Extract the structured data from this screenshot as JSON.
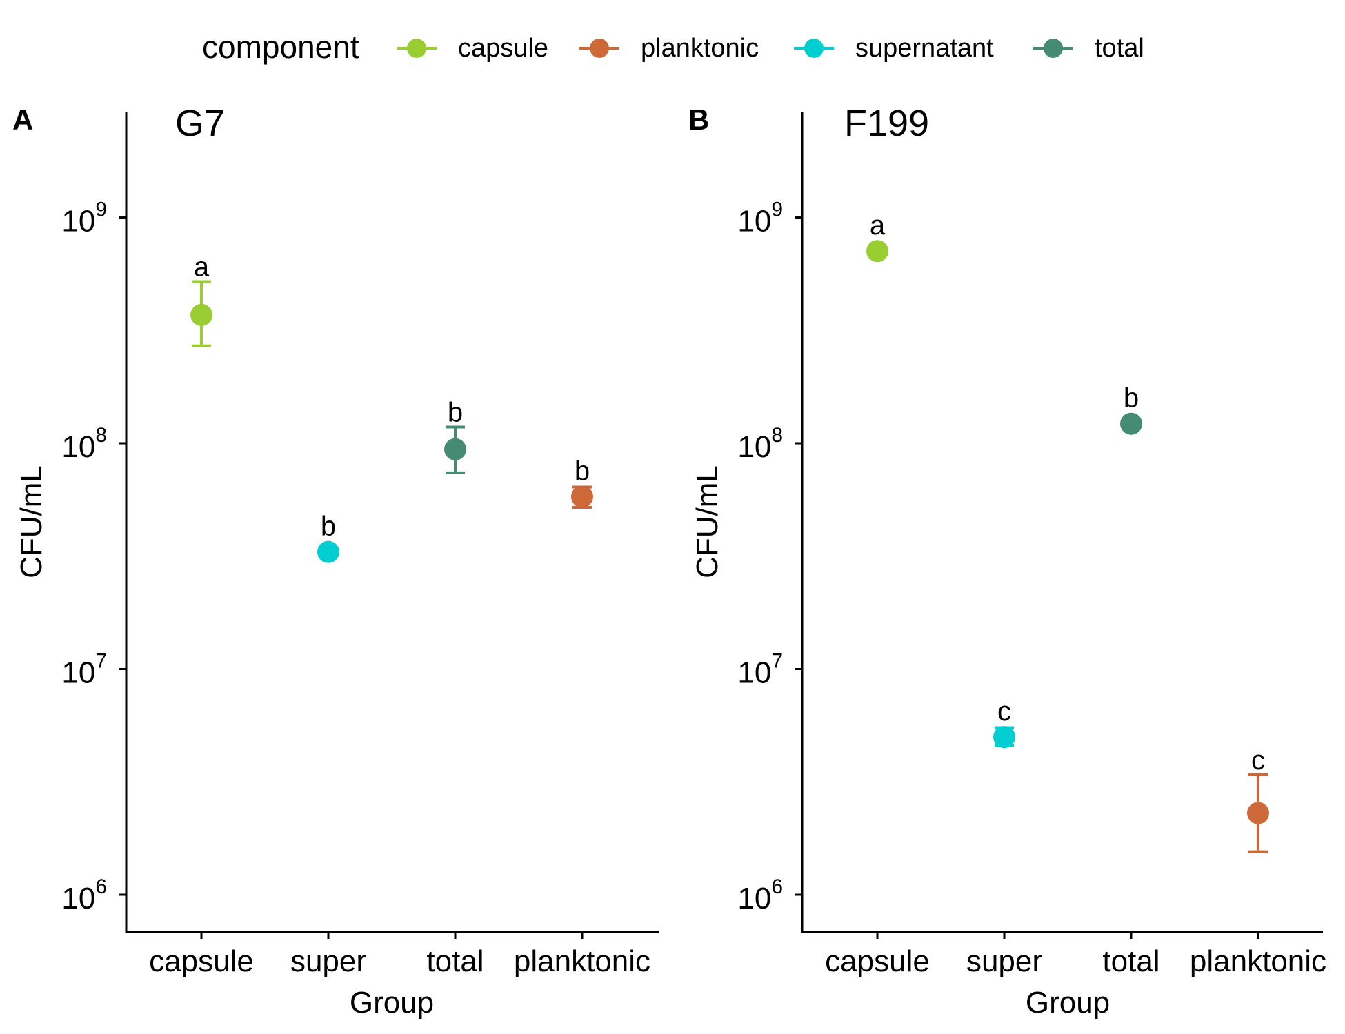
{
  "legend": {
    "title": "component",
    "items": [
      {
        "label": "capsule",
        "color": "#9ACD32"
      },
      {
        "label": "planktonic",
        "color": "#CD6839"
      },
      {
        "label": "supernatant",
        "color": "#00CED1"
      },
      {
        "label": "total",
        "color": "#458B74"
      }
    ]
  },
  "chart_data": [
    {
      "type": "scatter",
      "panel_label": "A",
      "title": "G7",
      "xlabel": "Group",
      "ylabel": "CFU/mL",
      "yscale": "log",
      "ylim": [
        500000,
        2500000000
      ],
      "ytick_labels": [
        {
          "value": 1000000,
          "base": "10",
          "exp": "6"
        },
        {
          "value": 10000000,
          "base": "10",
          "exp": "7"
        },
        {
          "value": 100000000,
          "base": "10",
          "exp": "8"
        },
        {
          "value": 1000000000,
          "base": "10",
          "exp": "9"
        }
      ],
      "categories": [
        "capsule",
        "super",
        "total",
        "planktonic"
      ],
      "points": [
        {
          "category": "capsule",
          "component": "capsule",
          "color": "#9ACD32",
          "y": 370000000,
          "ymin": 270000000,
          "ymax": 520000000,
          "letter": "a"
        },
        {
          "category": "super",
          "component": "supernatant",
          "color": "#00CED1",
          "y": 33000000,
          "ymin": 32000000,
          "ymax": 34000000,
          "letter": "b"
        },
        {
          "category": "total",
          "component": "total",
          "color": "#458B74",
          "y": 94000000,
          "ymin": 74000000,
          "ymax": 118000000,
          "letter": "b"
        },
        {
          "category": "planktonic",
          "component": "planktonic",
          "color": "#CD6839",
          "y": 58000000,
          "ymin": 52000000,
          "ymax": 64000000,
          "letter": "b"
        }
      ]
    },
    {
      "type": "scatter",
      "panel_label": "B",
      "title": "F199",
      "xlabel": "Group",
      "ylabel": "CFU/mL",
      "yscale": "log",
      "ylim": [
        500000,
        2500000000
      ],
      "ytick_labels": [
        {
          "value": 1000000,
          "base": "10",
          "exp": "6"
        },
        {
          "value": 10000000,
          "base": "10",
          "exp": "7"
        },
        {
          "value": 100000000,
          "base": "10",
          "exp": "8"
        },
        {
          "value": 1000000000,
          "base": "10",
          "exp": "9"
        }
      ],
      "categories": [
        "capsule",
        "super",
        "total",
        "planktonic"
      ],
      "points": [
        {
          "category": "capsule",
          "component": "capsule",
          "color": "#9ACD32",
          "y": 710000000,
          "ymin": 700000000,
          "ymax": 720000000,
          "letter": "a"
        },
        {
          "category": "super",
          "component": "supernatant",
          "color": "#00CED1",
          "y": 5000000,
          "ymin": 4600000,
          "ymax": 5500000,
          "letter": "c"
        },
        {
          "category": "total",
          "component": "total",
          "color": "#458B74",
          "y": 122000000,
          "ymin": 119000000,
          "ymax": 125000000,
          "letter": "b"
        },
        {
          "category": "planktonic",
          "component": "planktonic",
          "color": "#CD6839",
          "y": 2300000,
          "ymin": 1550000,
          "ymax": 3400000,
          "letter": "c"
        }
      ]
    }
  ]
}
